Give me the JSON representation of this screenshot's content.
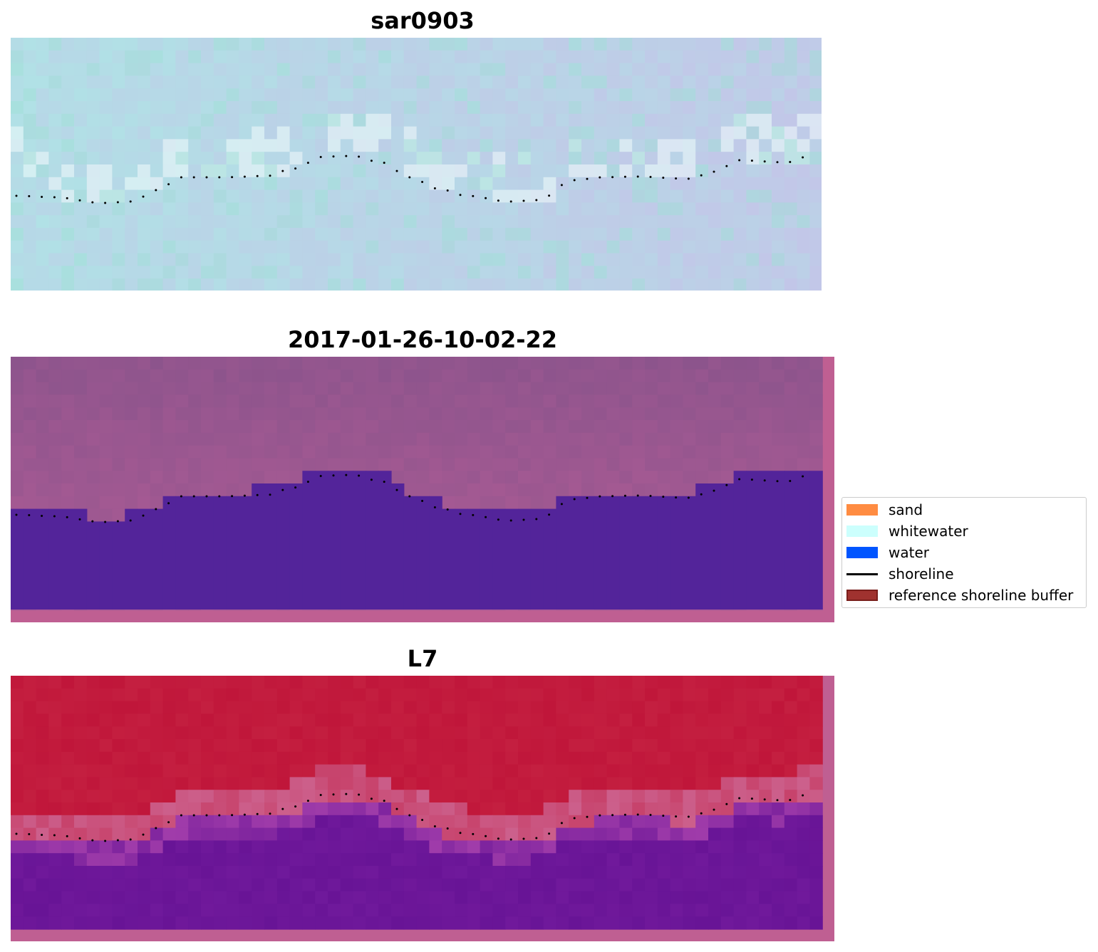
{
  "panels": [
    {
      "title": "sar0903"
    },
    {
      "title": "2017-01-26-10-02-22"
    },
    {
      "title": "L7"
    }
  ],
  "legend": {
    "items": [
      {
        "label": "sand",
        "kind": "patch",
        "color": "#ff8c42"
      },
      {
        "label": "whitewater",
        "kind": "patch",
        "color": "#ccfffd"
      },
      {
        "label": "water",
        "kind": "patch",
        "color": "#0055ff"
      },
      {
        "label": "shoreline",
        "kind": "line",
        "color": "#000000"
      },
      {
        "label": "reference shoreline buffer",
        "kind": "patch",
        "color": "#a0322f"
      }
    ]
  },
  "colors": {
    "detected_water": "#53249a",
    "buffer_frame": "#bf5f92"
  }
}
